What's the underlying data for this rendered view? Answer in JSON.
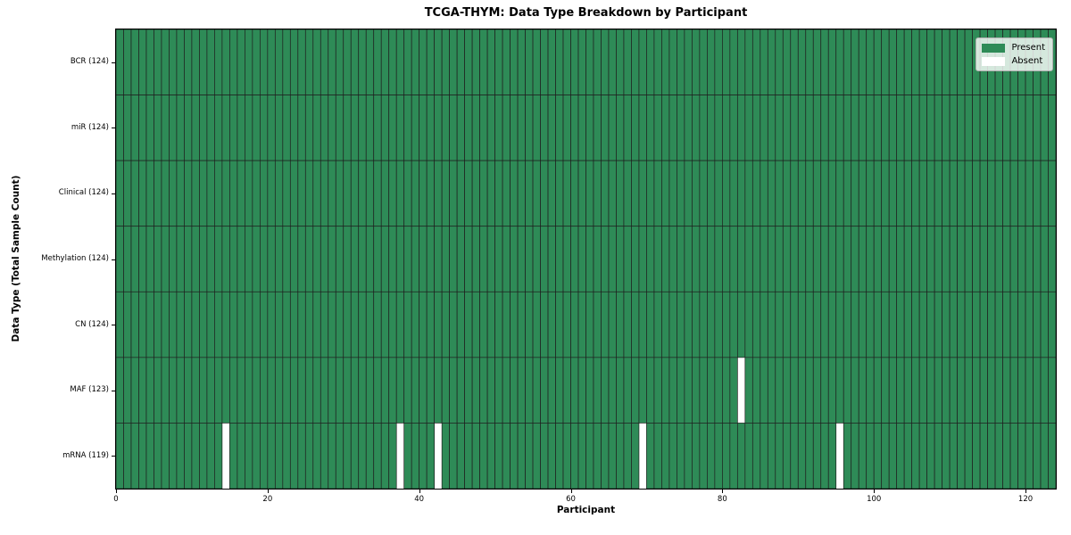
{
  "chart_data": {
    "type": "heatmap",
    "title": "TCGA-THYM: Data Type Breakdown by Participant",
    "xlabel": "Participant",
    "ylabel": "Data Type (Total Sample Count)",
    "n_participants": 124,
    "x_axis": {
      "min": 0,
      "max": 124,
      "ticks": [
        0,
        20,
        40,
        60,
        80,
        100,
        120
      ]
    },
    "rows": [
      {
        "label": "BCR (124)",
        "data_type": "BCR",
        "present_count": 124,
        "absent_participants": []
      },
      {
        "label": "miR (124)",
        "data_type": "miR",
        "present_count": 124,
        "absent_participants": []
      },
      {
        "label": "Clinical (124)",
        "data_type": "Clinical",
        "present_count": 124,
        "absent_participants": []
      },
      {
        "label": "Methylation (124)",
        "data_type": "Methylation",
        "present_count": 124,
        "absent_participants": []
      },
      {
        "label": "CN (124)",
        "data_type": "CN",
        "present_count": 124,
        "absent_participants": []
      },
      {
        "label": "MAF (123)",
        "data_type": "MAF",
        "present_count": 123,
        "absent_participants": [
          82
        ]
      },
      {
        "label": "mRNA (119)",
        "data_type": "mRNA",
        "present_count": 119,
        "absent_participants": [
          14,
          37,
          42,
          69,
          95
        ]
      }
    ],
    "legend": {
      "position": "upper right",
      "items": [
        {
          "label": "Present",
          "color": "#2e8b57"
        },
        {
          "label": "Absent",
          "color": "#ffffff"
        }
      ]
    },
    "colors": {
      "present": "#2e8b57",
      "absent": "#ffffff",
      "bar_edge": "#1f1f1f",
      "background": "#ffffff"
    }
  }
}
